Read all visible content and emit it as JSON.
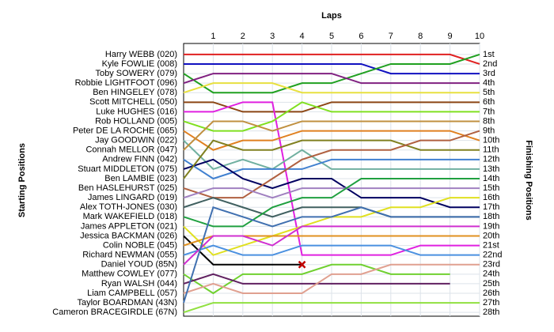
{
  "chart_data": {
    "type": "bump",
    "title": "Laps",
    "y_label": "Starting Positions",
    "y2_label": "Finishing Positions",
    "x": [
      0,
      1,
      2,
      3,
      4,
      5,
      6,
      7,
      8,
      9,
      10
    ],
    "xlim": [
      0,
      10
    ],
    "xticks": [
      1,
      2,
      3,
      4,
      5,
      6,
      7,
      8,
      9,
      10
    ],
    "ylim": [
      28.4,
      -0.15
    ],
    "yticks": [
      {
        "value": 1,
        "label": "1st"
      },
      {
        "value": 2,
        "label": "2nd"
      },
      {
        "value": 3,
        "label": "3rd"
      },
      {
        "value": 4,
        "label": "4th"
      },
      {
        "value": 5,
        "label": "5th"
      },
      {
        "value": 6,
        "label": "6th"
      },
      {
        "value": 7,
        "label": "7th"
      },
      {
        "value": 8,
        "label": "8th"
      },
      {
        "value": 9,
        "label": "9th"
      },
      {
        "value": 10,
        "label": "10th"
      },
      {
        "value": 11,
        "label": "11th"
      },
      {
        "value": 12,
        "label": "12th"
      },
      {
        "value": 13,
        "label": "13th"
      },
      {
        "value": 14,
        "label": "14th"
      },
      {
        "value": 15,
        "label": "15th"
      },
      {
        "value": 16,
        "label": "16th"
      },
      {
        "value": 17,
        "label": "17th"
      },
      {
        "value": 18,
        "label": "18th"
      },
      {
        "value": 19,
        "label": "19th"
      },
      {
        "value": 20,
        "label": "20th"
      },
      {
        "value": 21,
        "label": "21st"
      },
      {
        "value": 22,
        "label": "22nd"
      },
      {
        "value": 23,
        "label": "23rd"
      },
      {
        "value": 24,
        "label": "24th"
      },
      {
        "value": 25,
        "label": "25th"
      },
      {
        "value": 26,
        "label": "26th"
      },
      {
        "value": 27,
        "label": "27th"
      },
      {
        "value": 28,
        "label": "28th"
      }
    ],
    "grid": true,
    "series": [
      {
        "name": "Harry WEBB (020)",
        "color": "#e02020",
        "values": [
          1,
          1,
          1,
          1,
          1,
          1,
          1,
          1,
          1,
          1,
          2
        ]
      },
      {
        "name": "Kyle FOWLIE (008)",
        "color": "#1010c0",
        "values": [
          2,
          2,
          2,
          2,
          2,
          2,
          2,
          3,
          3,
          3,
          3
        ]
      },
      {
        "name": "Toby SOWERY (079)",
        "color": "#20a020",
        "values": [
          3,
          5,
          5,
          5,
          4,
          4,
          3,
          2,
          2,
          2,
          1
        ]
      },
      {
        "name": "Robbie LIGHTFOOT (096)",
        "color": "#802080",
        "values": [
          4,
          3,
          3,
          3,
          3,
          3,
          4,
          4,
          4,
          4,
          4
        ]
      },
      {
        "name": "Ben HINGELEY (078)",
        "color": "#e8e040",
        "values": [
          5,
          4,
          4,
          4,
          5,
          5,
          5,
          5,
          5,
          5,
          5
        ]
      },
      {
        "name": "Scott MITCHELL (050)",
        "color": "#8b4513",
        "values": [
          6,
          6,
          7,
          7,
          7,
          6,
          6,
          6,
          6,
          6,
          6
        ]
      },
      {
        "name": "Luke HUGHES (016)",
        "color": "#e020e0",
        "values": [
          7,
          7,
          6,
          6,
          22,
          22,
          22,
          22,
          21,
          21,
          21
        ]
      },
      {
        "name": "Rob HOLLAND (005)",
        "color": "#80e020",
        "values": [
          8,
          9,
          9,
          8,
          6,
          7,
          7,
          7,
          7,
          7,
          7
        ]
      },
      {
        "name": "Peter DE LA ROCHE (065)",
        "color": "#e08020",
        "values": [
          9,
          11,
          10,
          10,
          9,
          9,
          9,
          9,
          9,
          9,
          10
        ]
      },
      {
        "name": "Jay GOODWIN (022)",
        "color": "#70b0a0",
        "values": [
          10,
          13,
          12,
          13,
          11,
          13,
          13,
          13,
          13,
          13,
          13
        ]
      },
      {
        "name": "Connah MELLOR (047)",
        "color": "#c09040",
        "values": [
          11,
          8,
          8,
          9,
          8,
          8,
          8,
          8,
          8,
          8,
          8
        ]
      },
      {
        "name": "Andrew FINN (042)",
        "color": "#4080d0",
        "values": [
          12,
          14,
          13,
          13,
          13,
          12,
          12,
          12,
          12,
          12,
          12
        ]
      },
      {
        "name": "Stuart MIDDLETON (075)",
        "color": "#000060",
        "values": [
          13,
          12,
          14,
          15,
          14,
          14,
          16,
          16,
          16,
          17,
          17
        ]
      },
      {
        "name": "Ben LAMBIE (023)",
        "color": "#808020",
        "values": [
          14,
          10,
          11,
          11,
          10,
          10,
          10,
          10,
          11,
          11,
          11
        ]
      },
      {
        "name": "Ben HASLEHURST (025)",
        "color": "#b06040",
        "values": [
          15,
          16,
          16,
          14,
          12,
          11,
          11,
          11,
          10,
          10,
          9
        ]
      },
      {
        "name": "James LINGARD (019)",
        "color": "#a080c0",
        "values": [
          16,
          15,
          15,
          16,
          15,
          15,
          15,
          15,
          15,
          15,
          15
        ]
      },
      {
        "name": "Alex TOTH-JONES (030)",
        "color": "#406060",
        "values": [
          17,
          16,
          17,
          18,
          17,
          17,
          17,
          18,
          18,
          18,
          18
        ]
      },
      {
        "name": "Mark WAKEFIELD (018)",
        "color": "#20a040",
        "values": [
          18,
          19,
          19,
          17,
          16,
          16,
          14,
          14,
          14,
          14,
          14
        ]
      },
      {
        "name": "James APPLETON (021)",
        "color": "#e0e020",
        "values": [
          19,
          22,
          21,
          20,
          19,
          18,
          18,
          17,
          17,
          16,
          16
        ]
      },
      {
        "name": "Jessica BACKMAN (026)",
        "color": "#000000",
        "values": [
          20,
          23,
          23,
          23,
          23,
          null,
          null,
          null,
          null,
          null,
          null
        ],
        "dnf": {
          "x": 4,
          "y": 23
        }
      },
      {
        "name": "Colin NOBLE (045)",
        "color": "#e09020",
        "values": [
          21,
          20,
          20,
          20,
          20,
          20,
          20,
          20,
          20,
          20,
          20
        ]
      },
      {
        "name": "Richard NEWMAN (055)",
        "color": "#4a90e0",
        "values": [
          22,
          21,
          22,
          22,
          21,
          21,
          21,
          21,
          22,
          22,
          22
        ]
      },
      {
        "name": "Daniel YOUD (85N)",
        "color": "#d030d0",
        "values": [
          23,
          20,
          20,
          21,
          19,
          19,
          19,
          19,
          19,
          19,
          19
        ]
      },
      {
        "name": "Matthew COWLEY (077)",
        "color": "#70d030",
        "values": [
          24,
          26,
          24,
          24,
          24,
          23,
          23,
          24,
          24,
          24,
          null
        ]
      },
      {
        "name": "Ryan WALSH (044)",
        "color": "#602060",
        "values": [
          25,
          24,
          25,
          25,
          25,
          25,
          25,
          25,
          25,
          25,
          null
        ]
      },
      {
        "name": "Liam CAMPBELL (057)",
        "color": "#e0a090",
        "values": [
          26,
          25,
          26,
          26,
          26,
          24,
          24,
          23,
          23,
          23,
          23
        ]
      },
      {
        "name": "Taylor BOARDMAN (43N)",
        "color": "#4070b0",
        "values": [
          27,
          17,
          18,
          19,
          18,
          18,
          17,
          18,
          18,
          18,
          18
        ]
      },
      {
        "name": "Cameron BRACEGIRDLE (67N)",
        "color": "#90e040",
        "values": [
          28,
          27,
          27,
          27,
          27,
          27,
          27,
          27,
          27,
          27,
          27
        ]
      }
    ]
  }
}
